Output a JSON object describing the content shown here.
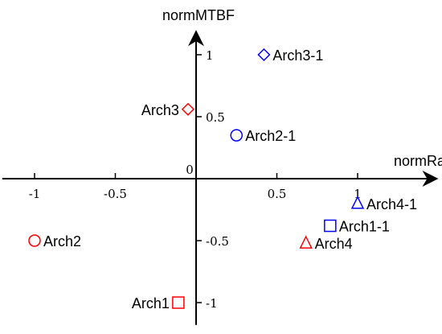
{
  "chart_data": {
    "type": "scatter",
    "title": "",
    "xlabel": "normRate",
    "ylabel": "normMTBF",
    "xlim": [
      -1.2,
      1.5
    ],
    "ylim": [
      -1.18,
      1.2
    ],
    "grid": false,
    "x_ticks": [
      {
        "value": -1,
        "label": "-1"
      },
      {
        "value": -0.5,
        "label": "-0.5"
      },
      {
        "value": 0.5,
        "label": "0.5"
      },
      {
        "value": 1,
        "label": "1"
      }
    ],
    "y_ticks": [
      {
        "value": 1,
        "label": "1"
      },
      {
        "value": 0.5,
        "label": "0.5"
      },
      {
        "value": -0.5,
        "label": "-0.5"
      },
      {
        "value": -1,
        "label": "-1"
      }
    ],
    "origin_label": "0",
    "points": [
      {
        "label": "Arch3-1",
        "x": 0.42,
        "y": 1.0,
        "marker": "diamond",
        "color": "#0000ff",
        "label_side": "right"
      },
      {
        "label": "Arch3",
        "x": -0.05,
        "y": 0.56,
        "marker": "diamond",
        "color": "#ff0000",
        "label_side": "left"
      },
      {
        "label": "Arch2-1",
        "x": 0.25,
        "y": 0.35,
        "marker": "circle",
        "color": "#0000ff",
        "label_side": "right"
      },
      {
        "label": "Arch4-1",
        "x": 1.0,
        "y": -0.2,
        "marker": "triangle",
        "color": "#0000ff",
        "label_side": "right"
      },
      {
        "label": "Arch1-1",
        "x": 0.83,
        "y": -0.38,
        "marker": "square",
        "color": "#0000ff",
        "label_side": "right"
      },
      {
        "label": "Arch2",
        "x": -1.0,
        "y": -0.5,
        "marker": "circle",
        "color": "#ff0000",
        "label_side": "right"
      },
      {
        "label": "Arch4",
        "x": 0.68,
        "y": -0.52,
        "marker": "triangle",
        "color": "#ff0000",
        "label_side": "right"
      },
      {
        "label": "Arch1",
        "x": -0.11,
        "y": -1.0,
        "marker": "square",
        "color": "#ff0000",
        "label_side": "left"
      }
    ]
  }
}
